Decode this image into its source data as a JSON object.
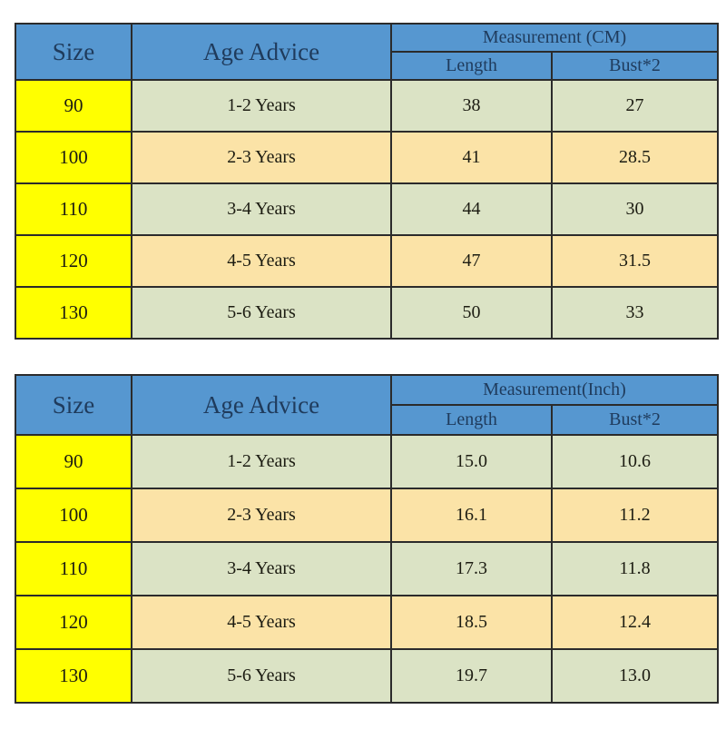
{
  "page": {
    "background": "#ffffff"
  },
  "colors": {
    "page_bg": "#ffffff",
    "header_bg": "#5697d0",
    "header_text": "#1f3b5c",
    "size_col_bg": "#ffff00",
    "row_green": "#dbe3c5",
    "row_tan": "#fbe3a7",
    "body_text": "#1c1c12",
    "border_color": "#2b2b2b"
  },
  "chart_data": [
    {
      "type": "table",
      "unit": "CM",
      "header": {
        "size": "Size",
        "age_advice": "Age Advice",
        "measurement_group": "Measurement (CM)",
        "length": "Length",
        "bust": "Bust*2"
      },
      "rows": [
        {
          "size": "90",
          "age": "1-2 Years",
          "length": "38",
          "bust": "27"
        },
        {
          "size": "100",
          "age": "2-3 Years",
          "length": "41",
          "bust": "28.5"
        },
        {
          "size": "110",
          "age": "3-4 Years",
          "length": "44",
          "bust": "30"
        },
        {
          "size": "120",
          "age": "4-5 Years",
          "length": "47",
          "bust": "31.5"
        },
        {
          "size": "130",
          "age": "5-6 Years",
          "length": "50",
          "bust": "33"
        }
      ]
    },
    {
      "type": "table",
      "unit": "Inch",
      "header": {
        "size": "Size",
        "age_advice": "Age Advice",
        "measurement_group": "Measurement(Inch)",
        "length": "Length",
        "bust": "Bust*2"
      },
      "rows": [
        {
          "size": "90",
          "age": "1-2 Years",
          "length": "15.0",
          "bust": "10.6"
        },
        {
          "size": "100",
          "age": "2-3 Years",
          "length": "16.1",
          "bust": "11.2"
        },
        {
          "size": "110",
          "age": "3-4 Years",
          "length": "17.3",
          "bust": "11.8"
        },
        {
          "size": "120",
          "age": "4-5 Years",
          "length": "18.5",
          "bust": "12.4"
        },
        {
          "size": "130",
          "age": "5-6 Years",
          "length": "19.7",
          "bust": "13.0"
        }
      ]
    }
  ]
}
